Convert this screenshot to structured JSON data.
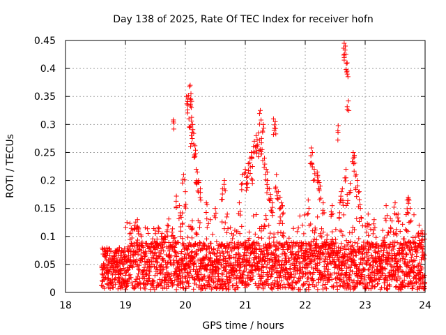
{
  "chart_data": {
    "type": "scatter",
    "title": "Day 138 of 2025, Rate Of TEC Index for receiver hofn",
    "xlabel": "GPS time / hours",
    "ylabel": "ROTI / TECUs",
    "xlim": [
      18,
      24
    ],
    "ylim": [
      0,
      0.45
    ],
    "xticks": [
      "18",
      "19",
      "20",
      "21",
      "22",
      "23",
      "24"
    ],
    "yticks": [
      "0",
      "0.05",
      "0.1",
      "0.15",
      "0.2",
      "0.25",
      "0.3",
      "0.35",
      "0.4",
      "0.45"
    ],
    "grid": true,
    "marker": "+",
    "series_color": "#ff0000",
    "data_start_hour": 18.6,
    "baseline_range": [
      0.005,
      0.09
    ],
    "series": [
      {
        "name": "ROTI",
        "points": [
          [
            19.8,
            0.308
          ],
          [
            19.97,
            0.21
          ],
          [
            20.02,
            0.35
          ],
          [
            20.05,
            0.352
          ],
          [
            20.08,
            0.37
          ],
          [
            20.1,
            0.33
          ],
          [
            20.12,
            0.3
          ],
          [
            20.14,
            0.265
          ],
          [
            20.16,
            0.262
          ],
          [
            20.18,
            0.22
          ],
          [
            20.2,
            0.215
          ],
          [
            20.22,
            0.2
          ],
          [
            20.1,
            0.28
          ],
          [
            20.06,
            0.31
          ],
          [
            20.09,
            0.345
          ],
          [
            20.0,
            0.18
          ],
          [
            19.9,
            0.155
          ],
          [
            19.85,
            0.172
          ],
          [
            19.95,
            0.142
          ],
          [
            20.25,
            0.185
          ],
          [
            20.35,
            0.16
          ],
          [
            20.5,
            0.15
          ],
          [
            20.65,
            0.2
          ],
          [
            20.62,
            0.185
          ],
          [
            20.7,
            0.14
          ],
          [
            20.9,
            0.16
          ],
          [
            20.95,
            0.21
          ],
          [
            21.0,
            0.22
          ],
          [
            21.05,
            0.23
          ],
          [
            21.1,
            0.25
          ],
          [
            21.12,
            0.225
          ],
          [
            21.15,
            0.27
          ],
          [
            21.18,
            0.28
          ],
          [
            21.2,
            0.26
          ],
          [
            21.22,
            0.285
          ],
          [
            21.25,
            0.325
          ],
          [
            21.27,
            0.275
          ],
          [
            21.3,
            0.3
          ],
          [
            21.32,
            0.24
          ],
          [
            21.35,
            0.22
          ],
          [
            21.37,
            0.2
          ],
          [
            21.4,
            0.185
          ],
          [
            21.42,
            0.175
          ],
          [
            21.45,
            0.16
          ],
          [
            21.47,
            0.31
          ],
          [
            21.5,
            0.305
          ],
          [
            21.52,
            0.21
          ],
          [
            21.55,
            0.18
          ],
          [
            21.58,
            0.17
          ],
          [
            21.6,
            0.16
          ],
          [
            21.62,
            0.155
          ],
          [
            21.08,
            0.24
          ],
          [
            21.02,
            0.205
          ],
          [
            21.28,
            0.255
          ],
          [
            22.1,
            0.258
          ],
          [
            22.12,
            0.25
          ],
          [
            22.15,
            0.22
          ],
          [
            22.2,
            0.215
          ],
          [
            22.22,
            0.2
          ],
          [
            22.25,
            0.19
          ],
          [
            22.05,
            0.165
          ],
          [
            22.3,
            0.16
          ],
          [
            22.45,
            0.155
          ],
          [
            22.55,
            0.298
          ],
          [
            22.6,
            0.18
          ],
          [
            22.62,
            0.185
          ],
          [
            22.65,
            0.445
          ],
          [
            22.67,
            0.44
          ],
          [
            22.68,
            0.425
          ],
          [
            22.7,
            0.41
          ],
          [
            22.72,
            0.342
          ],
          [
            22.68,
            0.22
          ],
          [
            22.75,
            0.195
          ],
          [
            22.8,
            0.25
          ],
          [
            22.82,
            0.245
          ],
          [
            22.85,
            0.21
          ],
          [
            22.87,
            0.2
          ],
          [
            22.9,
            0.18
          ],
          [
            22.92,
            0.15
          ],
          [
            22.58,
            0.16
          ],
          [
            22.7,
            0.175
          ],
          [
            23.05,
            0.14
          ],
          [
            23.15,
            0.13
          ],
          [
            23.35,
            0.155
          ],
          [
            23.5,
            0.16
          ],
          [
            23.55,
            0.14
          ],
          [
            23.7,
            0.165
          ],
          [
            23.72,
            0.17
          ],
          [
            23.75,
            0.15
          ],
          [
            23.9,
            0.12
          ],
          [
            23.95,
            0.11
          ],
          [
            19.2,
            0.13
          ],
          [
            19.22,
            0.115
          ],
          [
            19.5,
            0.105
          ],
          [
            19.7,
            0.12
          ],
          [
            19.6,
            0.1
          ],
          [
            18.9,
            0.08
          ],
          [
            18.7,
            0.075
          ]
        ]
      }
    ]
  }
}
